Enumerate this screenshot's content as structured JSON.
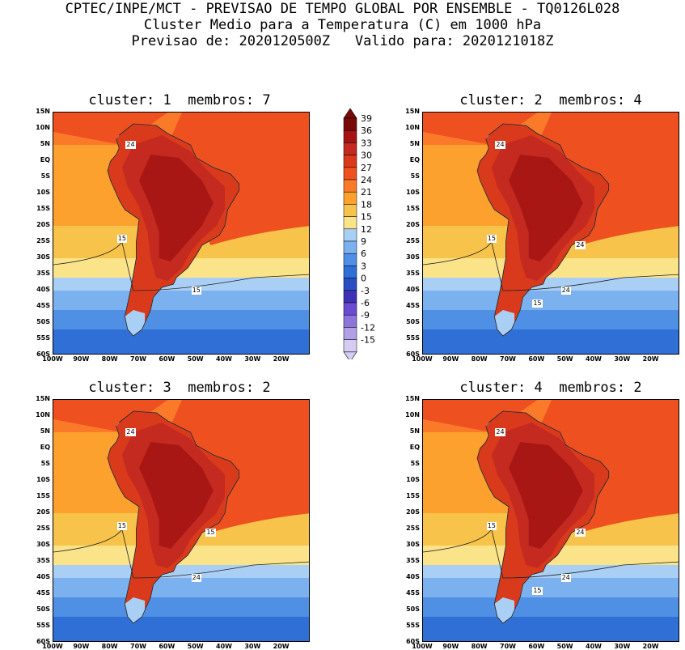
{
  "header": {
    "line1": "CPTEC/INPE/MCT - PREVISAO DE TEMPO GLOBAL POR ENSEMBLE - TQ0126L028",
    "line2": "Cluster Medio para a Temperatura (C) em 1000 hPa",
    "line3": "Previsao de: 2020120500Z   Valido para: 2020121018Z"
  },
  "panels": [
    {
      "title": "cluster: 1  membros: 7",
      "labels": [
        "24",
        "15",
        "15"
      ]
    },
    {
      "title": "cluster: 2  membros: 4",
      "labels": [
        "24",
        "15",
        "24",
        "24",
        "15"
      ]
    },
    {
      "title": "cluster: 3  membros: 2",
      "labels": [
        "24",
        "15",
        "24",
        "15"
      ]
    },
    {
      "title": "cluster: 4  membros: 2",
      "labels": [
        "24",
        "15",
        "24",
        "24",
        "15"
      ]
    }
  ],
  "lat_ticks": [
    "15N",
    "10N",
    "5N",
    "EQ",
    "5S",
    "10S",
    "15S",
    "20S",
    "25S",
    "30S",
    "35S",
    "40S",
    "45S",
    "50S",
    "55S",
    "60S"
  ],
  "lon_ticks": [
    "100W",
    "90W",
    "80W",
    "70W",
    "60W",
    "50W",
    "40W",
    "30W",
    "20W"
  ],
  "colorbar": {
    "levels": [
      "39",
      "36",
      "33",
      "30",
      "27",
      "24",
      "21",
      "18",
      "15",
      "12",
      "9",
      "6",
      "3",
      "0",
      "-3",
      "-6",
      "-9",
      "-12",
      "-15"
    ],
    "colors": [
      "#7a0a0a",
      "#a51414",
      "#c42a1f",
      "#d93a1c",
      "#ee5020",
      "#fb7a2a",
      "#fca12e",
      "#f7c34a",
      "#fbe38a",
      "#a9cff5",
      "#7cb1ef",
      "#4f8fe4",
      "#2f6fd6",
      "#2a4fc2",
      "#3e30b4",
      "#6a4cd0",
      "#8d74dc",
      "#b1a0e6",
      "#d6ccf2"
    ]
  }
}
